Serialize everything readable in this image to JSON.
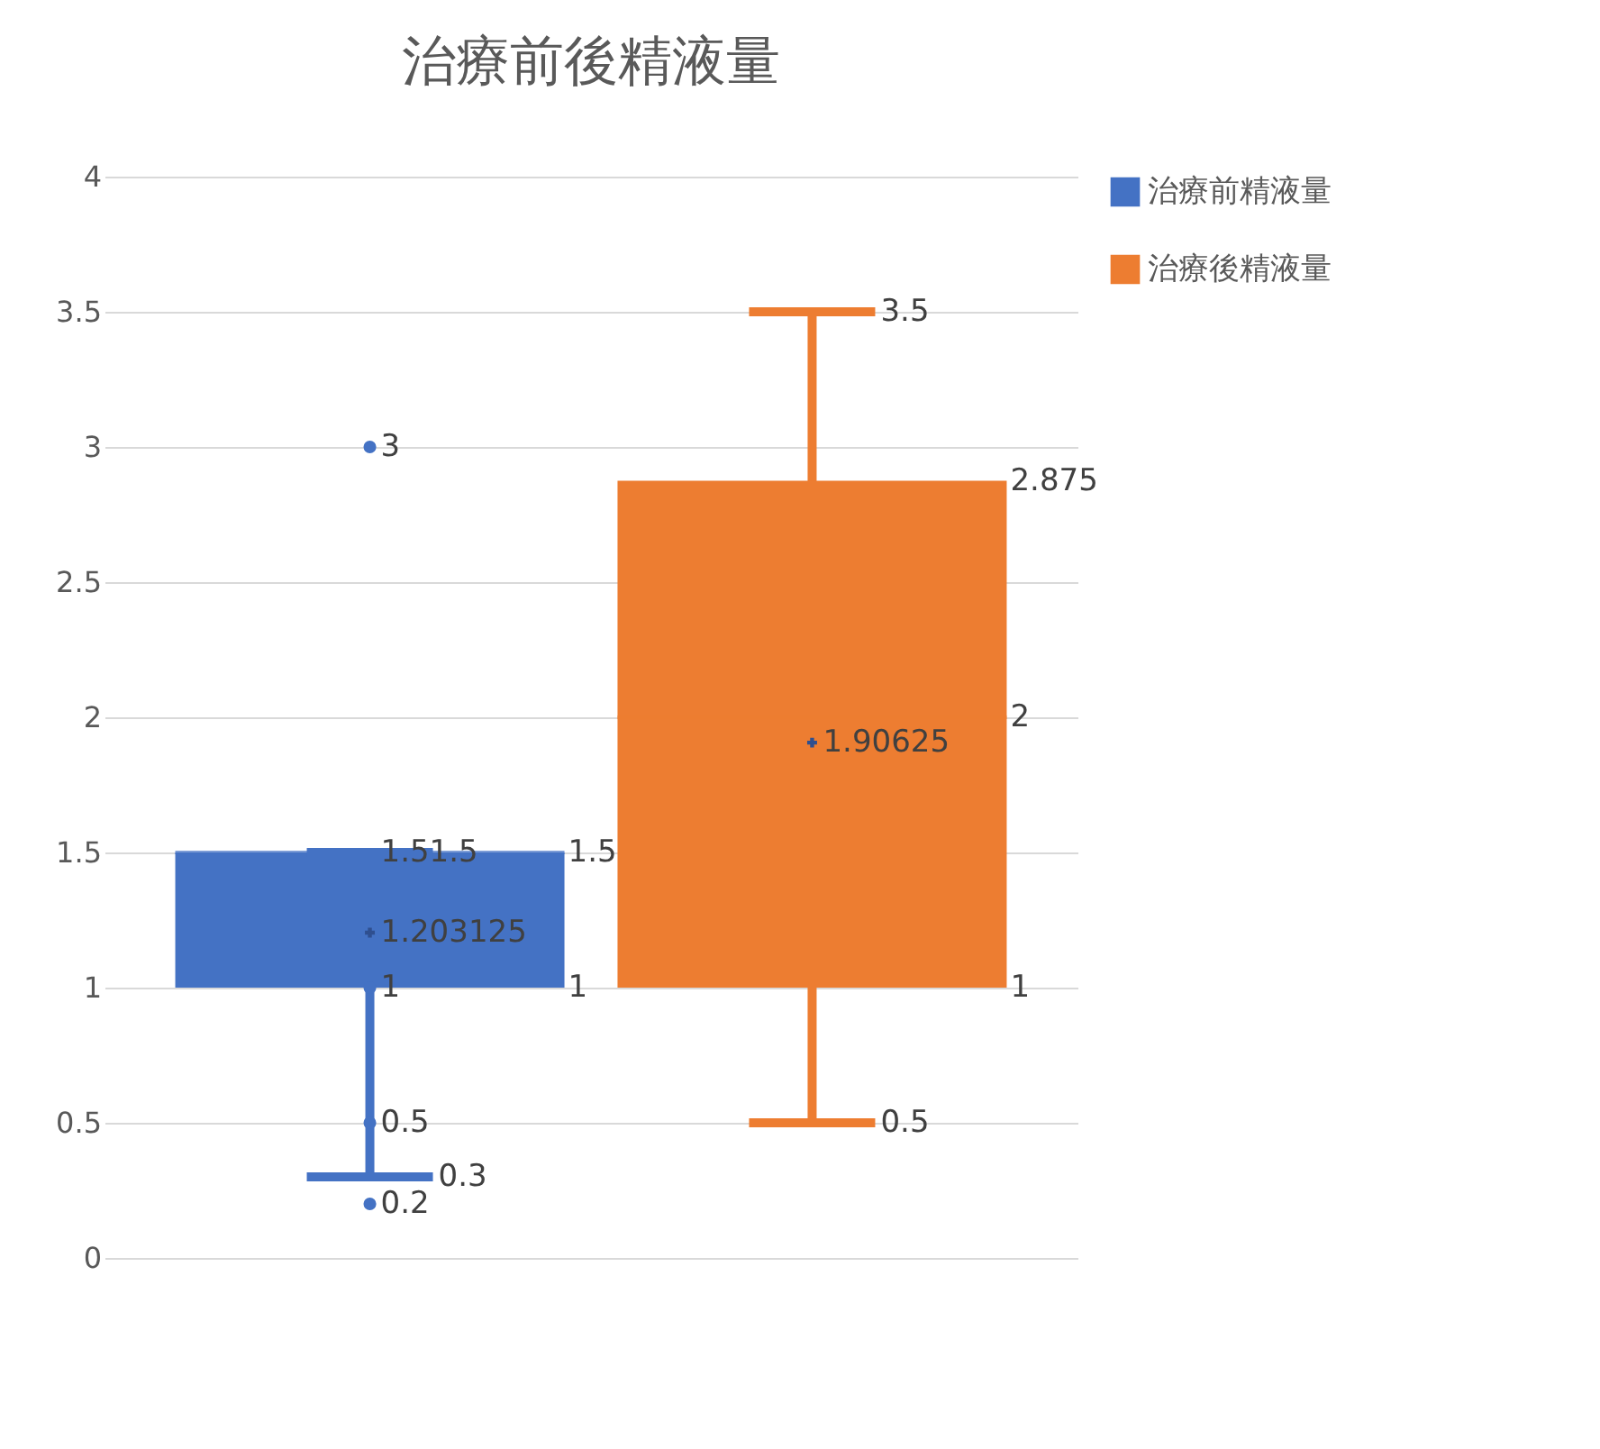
{
  "chart_data": {
    "type": "box",
    "title": "治療前後精液量",
    "categories": [
      null
    ],
    "series": [
      {
        "name": "治療前精液量",
        "color": "#4472c4",
        "boxes": [
          {
            "low": 0.3,
            "q1": 1,
            "median": 1.5,
            "q3": 1.5,
            "high": 1.5,
            "mean": 1.203125,
            "outliers": [
              3,
              0.5,
              0.2,
              1
            ]
          }
        ]
      },
      {
        "name": "治療後精液量",
        "color": "#ed7d31",
        "boxes": [
          {
            "low": 0.5,
            "q1": 1,
            "median": 2,
            "q3": 2.875,
            "high": 3.5,
            "mean": 1.90625
          }
        ]
      }
    ],
    "ylim": [
      0,
      4
    ],
    "yticks": [
      0,
      0.5,
      1,
      1.5,
      2,
      2.5,
      3,
      3.5,
      4
    ],
    "grid": "y",
    "legend": "right",
    "annotations": [
      "0.3",
      "1",
      "1.5",
      "1.5",
      "1.5",
      "1.203125",
      "3",
      "0.5",
      "0.2",
      "1",
      "0.5",
      "1",
      "2",
      "2.875",
      "3.5",
      "1.90625"
    ]
  }
}
